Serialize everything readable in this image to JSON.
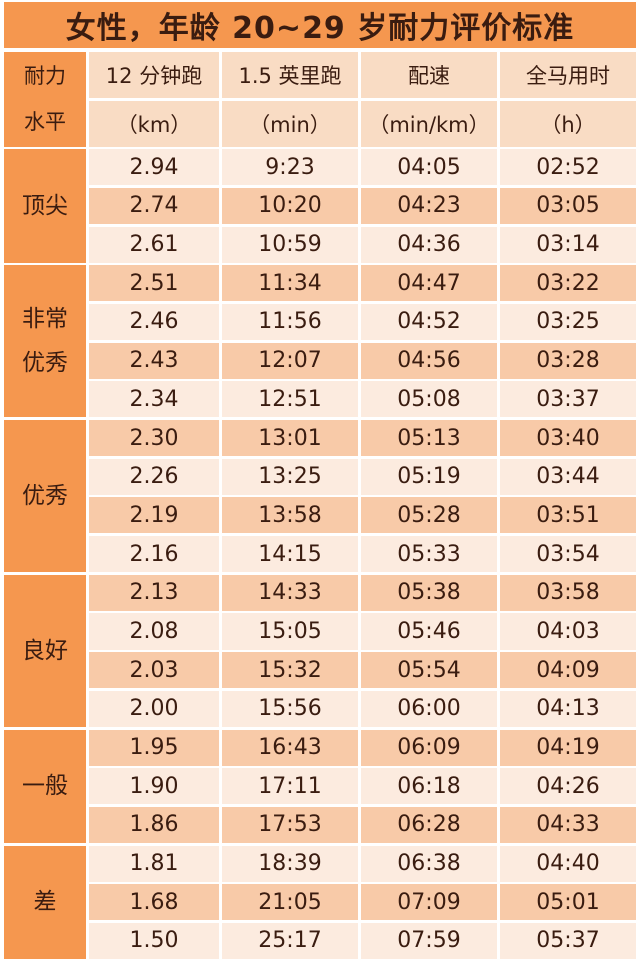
{
  "title": "女性，年龄 20~29 岁耐力评价标准",
  "header": {
    "level": [
      "耐力",
      "水平"
    ],
    "columns": [
      {
        "name": "12 分钟跑",
        "unit": "（km）"
      },
      {
        "name": "1.5 英里跑",
        "unit": "（min）"
      },
      {
        "name": "配速",
        "unit": "（min/km）"
      },
      {
        "name": "全马用时",
        "unit": "（h）"
      }
    ]
  },
  "groups": [
    {
      "level": [
        "顶尖"
      ],
      "rows": [
        [
          "2.94",
          "9:23",
          "04:05",
          "02:52"
        ],
        [
          "2.74",
          "10:20",
          "04:23",
          "03:05"
        ],
        [
          "2.61",
          "10:59",
          "04:36",
          "03:14"
        ]
      ]
    },
    {
      "level": [
        "非常",
        "优秀"
      ],
      "rows": [
        [
          "2.51",
          "11:34",
          "04:47",
          "03:22"
        ],
        [
          "2.46",
          "11:56",
          "04:52",
          "03:25"
        ],
        [
          "2.43",
          "12:07",
          "04:56",
          "03:28"
        ],
        [
          "2.34",
          "12:51",
          "05:08",
          "03:37"
        ]
      ]
    },
    {
      "level": [
        "优秀"
      ],
      "rows": [
        [
          "2.30",
          "13:01",
          "05:13",
          "03:40"
        ],
        [
          "2.26",
          "13:25",
          "05:19",
          "03:44"
        ],
        [
          "2.19",
          "13:58",
          "05:28",
          "03:51"
        ],
        [
          "2.16",
          "14:15",
          "05:33",
          "03:54"
        ]
      ]
    },
    {
      "level": [
        "良好"
      ],
      "rows": [
        [
          "2.13",
          "14:33",
          "05:38",
          "03:58"
        ],
        [
          "2.08",
          "15:05",
          "05:46",
          "04:03"
        ],
        [
          "2.03",
          "15:32",
          "05:54",
          "04:09"
        ],
        [
          "2.00",
          "15:56",
          "06:00",
          "04:13"
        ]
      ]
    },
    {
      "level": [
        "一般"
      ],
      "rows": [
        [
          "1.95",
          "16:43",
          "06:09",
          "04:19"
        ],
        [
          "1.90",
          "17:11",
          "06:18",
          "04:26"
        ],
        [
          "1.86",
          "17:53",
          "06:28",
          "04:33"
        ]
      ]
    },
    {
      "level": [
        "差"
      ],
      "rows": [
        [
          "1.81",
          "18:39",
          "06:38",
          "04:40"
        ],
        [
          "1.68",
          "21:05",
          "07:09",
          "05:01"
        ],
        [
          "1.50",
          "25:17",
          "07:59",
          "05:37"
        ]
      ]
    }
  ]
}
